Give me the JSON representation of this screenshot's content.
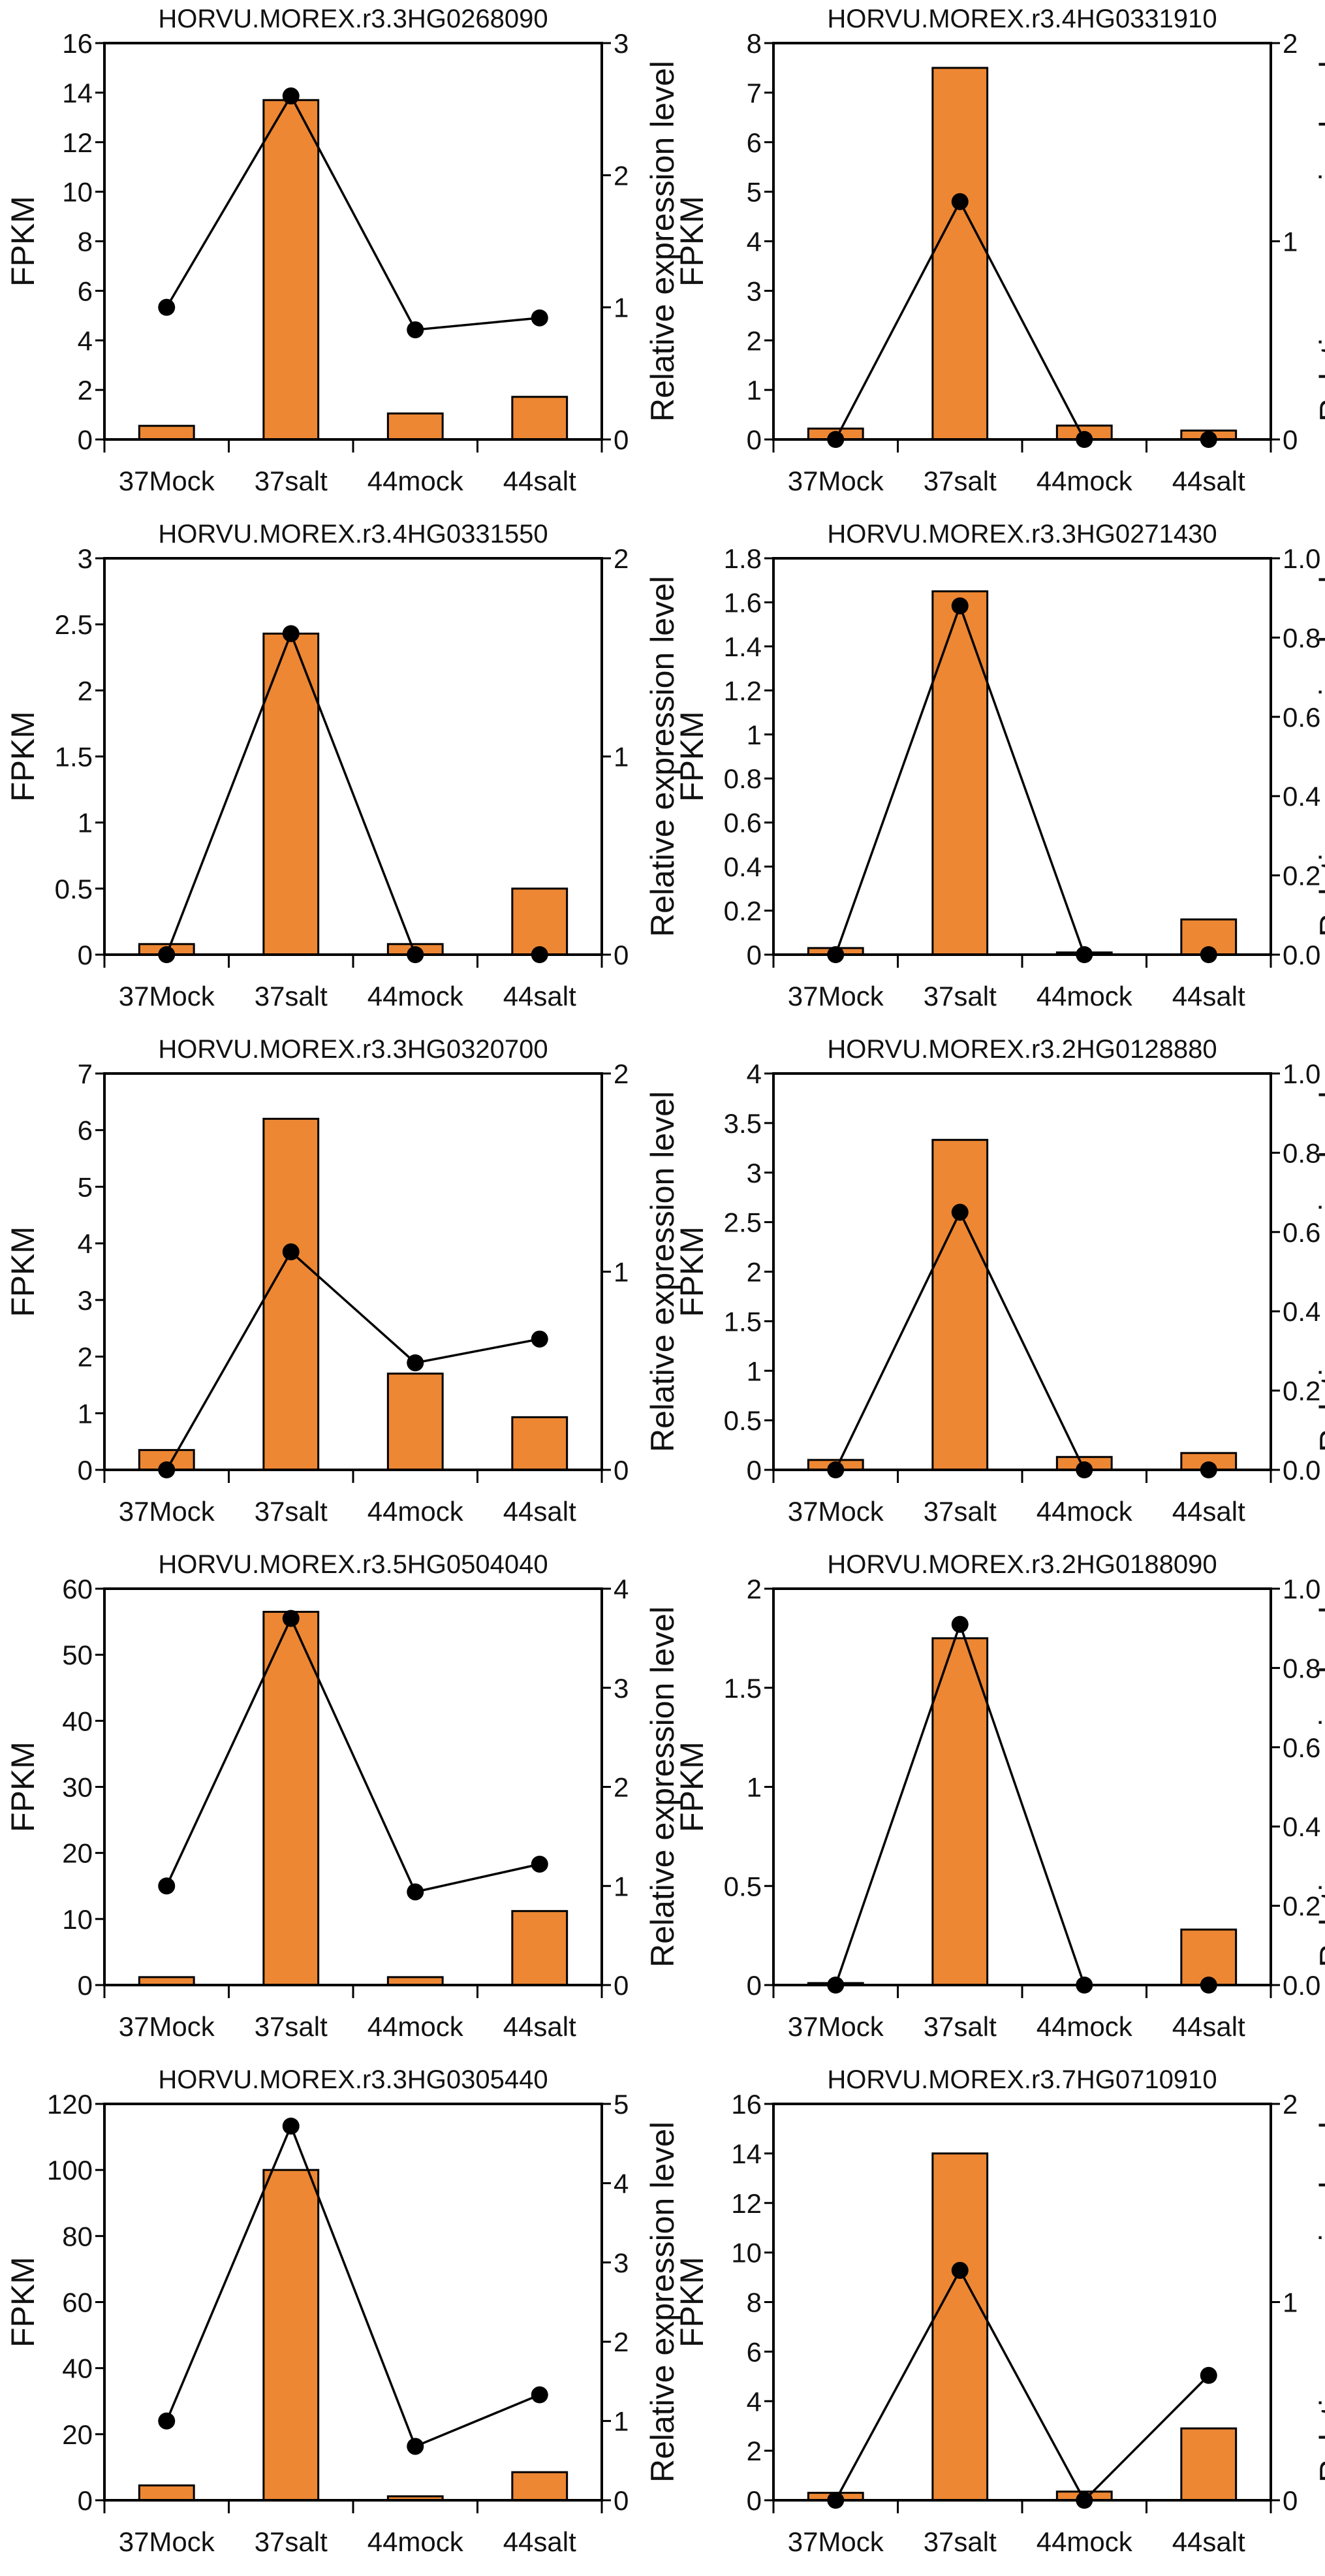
{
  "colors": {
    "bar": "#ED8733",
    "line": "#000000"
  },
  "chart_data": [
    {
      "type": "bar+line",
      "title": "HORVU.MOREX.r3.3HG0268090",
      "categories": [
        "37Mock",
        "37salt",
        "44mock",
        "44salt"
      ],
      "ylabel": "FPKM",
      "y2label": "Relative expression level",
      "ylim": [
        0,
        16
      ],
      "yticks": [
        "0",
        "2",
        "4",
        "6",
        "8",
        "10",
        "12",
        "14",
        "16"
      ],
      "y2lim": [
        0,
        3
      ],
      "y2ticks": [
        "0",
        "1",
        "2",
        "3"
      ],
      "series": [
        {
          "name": "FPKM",
          "type": "bar",
          "axis": "left",
          "values": [
            0.55,
            13.7,
            1.05,
            1.72
          ]
        },
        {
          "name": "Relative expression level",
          "type": "line",
          "axis": "right",
          "values": [
            1.0,
            2.6,
            0.83,
            0.92
          ]
        }
      ]
    },
    {
      "type": "bar+line",
      "title": "HORVU.MOREX.r3.4HG0331910",
      "categories": [
        "37Mock",
        "37salt",
        "44mock",
        "44salt"
      ],
      "ylabel": "FPKM",
      "y2label": "Relative expression level",
      "ylim": [
        0,
        8
      ],
      "yticks": [
        "0",
        "1",
        "2",
        "3",
        "4",
        "5",
        "6",
        "7",
        "8"
      ],
      "y2lim": [
        0,
        2
      ],
      "y2ticks": [
        "0",
        "1",
        "2"
      ],
      "series": [
        {
          "name": "FPKM",
          "type": "bar",
          "axis": "left",
          "values": [
            0.22,
            7.5,
            0.28,
            0.18
          ]
        },
        {
          "name": "Relative expression level",
          "type": "line",
          "axis": "right",
          "values": [
            0,
            1.2,
            0,
            0
          ]
        }
      ]
    },
    {
      "type": "bar+line",
      "title": "HORVU.MOREX.r3.4HG0331550",
      "categories": [
        "37Mock",
        "37salt",
        "44mock",
        "44salt"
      ],
      "ylabel": "FPKM",
      "y2label": "Relative expression level",
      "ylim": [
        0,
        3
      ],
      "yticks": [
        "0",
        "0.5",
        "1",
        "1.5",
        "2",
        "2.5",
        "3"
      ],
      "y2lim": [
        0,
        2
      ],
      "y2ticks": [
        "0",
        "1",
        "2"
      ],
      "series": [
        {
          "name": "FPKM",
          "type": "bar",
          "axis": "left",
          "values": [
            0.08,
            2.43,
            0.08,
            0.5
          ]
        },
        {
          "name": "Relative expression level",
          "type": "line",
          "axis": "right",
          "values": [
            0,
            1.62,
            0,
            0
          ]
        }
      ]
    },
    {
      "type": "bar+line",
      "title": "HORVU.MOREX.r3.3HG0271430",
      "categories": [
        "37Mock",
        "37salt",
        "44mock",
        "44salt"
      ],
      "ylabel": "FPKM",
      "y2label": "Relative expression level",
      "ylim": [
        0,
        1.8
      ],
      "yticks": [
        "0",
        "0.2",
        "0.4",
        "0.6",
        "0.8",
        "1",
        "1.2",
        "1.4",
        "1.6",
        "1.8"
      ],
      "y2lim": [
        0,
        1.0
      ],
      "y2ticks": [
        "0.0",
        "0.2",
        "0.4",
        "0.6",
        "0.8",
        "1.0"
      ],
      "series": [
        {
          "name": "FPKM",
          "type": "bar",
          "axis": "left",
          "values": [
            0.03,
            1.65,
            0.01,
            0.16
          ]
        },
        {
          "name": "Relative expression level",
          "type": "line",
          "axis": "right",
          "values": [
            0,
            0.88,
            0,
            0
          ]
        }
      ]
    },
    {
      "type": "bar+line",
      "title": "HORVU.MOREX.r3.3HG0320700",
      "categories": [
        "37Mock",
        "37salt",
        "44mock",
        "44salt"
      ],
      "ylabel": "FPKM",
      "y2label": "Relative expression level",
      "ylim": [
        0,
        7
      ],
      "yticks": [
        "0",
        "1",
        "2",
        "3",
        "4",
        "5",
        "6",
        "7"
      ],
      "y2lim": [
        0,
        2
      ],
      "y2ticks": [
        "0",
        "1",
        "2"
      ],
      "series": [
        {
          "name": "FPKM",
          "type": "bar",
          "axis": "left",
          "values": [
            0.35,
            6.2,
            1.7,
            0.93
          ]
        },
        {
          "name": "Relative expression level",
          "type": "line",
          "axis": "right",
          "values": [
            0,
            1.1,
            0.54,
            0.66
          ]
        }
      ]
    },
    {
      "type": "bar+line",
      "title": "HORVU.MOREX.r3.2HG0128880",
      "categories": [
        "37Mock",
        "37salt",
        "44mock",
        "44salt"
      ],
      "ylabel": "FPKM",
      "y2label": "Relative expression level",
      "ylim": [
        0,
        4
      ],
      "yticks": [
        "0",
        "0.5",
        "1",
        "1.5",
        "2",
        "2.5",
        "3",
        "3.5",
        "4"
      ],
      "y2lim": [
        0,
        1.0
      ],
      "y2ticks": [
        "0.0",
        "0.2",
        "0.4",
        "0.6",
        "0.8",
        "1.0"
      ],
      "series": [
        {
          "name": "FPKM",
          "type": "bar",
          "axis": "left",
          "values": [
            0.1,
            3.33,
            0.13,
            0.17
          ]
        },
        {
          "name": "Relative expression level",
          "type": "line",
          "axis": "right",
          "values": [
            0,
            0.65,
            0,
            0
          ]
        }
      ]
    },
    {
      "type": "bar+line",
      "title": "HORVU.MOREX.r3.5HG0504040",
      "categories": [
        "37Mock",
        "37salt",
        "44mock",
        "44salt"
      ],
      "ylabel": "FPKM",
      "y2label": "Relative expression level",
      "ylim": [
        0,
        60
      ],
      "yticks": [
        "0",
        "10",
        "20",
        "30",
        "40",
        "50",
        "60"
      ],
      "y2lim": [
        0,
        4
      ],
      "y2ticks": [
        "0",
        "1",
        "2",
        "3",
        "4"
      ],
      "series": [
        {
          "name": "FPKM",
          "type": "bar",
          "axis": "left",
          "values": [
            1.2,
            56.5,
            1.2,
            11.2
          ]
        },
        {
          "name": "Relative expression level",
          "type": "line",
          "axis": "right",
          "values": [
            1.0,
            3.7,
            0.94,
            1.22
          ]
        }
      ]
    },
    {
      "type": "bar+line",
      "title": "HORVU.MOREX.r3.2HG0188090",
      "categories": [
        "37Mock",
        "37salt",
        "44mock",
        "44salt"
      ],
      "ylabel": "FPKM",
      "y2label": "Relative expression level",
      "ylim": [
        0,
        2
      ],
      "yticks": [
        "0",
        "0.5",
        "1",
        "1.5",
        "2"
      ],
      "y2lim": [
        0,
        1.0
      ],
      "y2ticks": [
        "0.0",
        "0.2",
        "0.4",
        "0.6",
        "0.8",
        "1.0"
      ],
      "series": [
        {
          "name": "FPKM",
          "type": "bar",
          "axis": "left",
          "values": [
            0.01,
            1.75,
            0,
            0.28
          ]
        },
        {
          "name": "Relative expression level",
          "type": "line",
          "axis": "right",
          "values": [
            0,
            0.91,
            0,
            0
          ]
        }
      ]
    },
    {
      "type": "bar+line",
      "title": "HORVU.MOREX.r3.3HG0305440",
      "categories": [
        "37Mock",
        "37salt",
        "44mock",
        "44salt"
      ],
      "ylabel": "FPKM",
      "y2label": "Relative expression level",
      "ylim": [
        0,
        120
      ],
      "yticks": [
        "0",
        "20",
        "40",
        "60",
        "80",
        "100",
        "120"
      ],
      "y2lim": [
        0,
        5
      ],
      "y2ticks": [
        "0",
        "1",
        "2",
        "3",
        "4",
        "5"
      ],
      "series": [
        {
          "name": "FPKM",
          "type": "bar",
          "axis": "left",
          "values": [
            4.5,
            100,
            1.2,
            8.5
          ]
        },
        {
          "name": "Relative expression level",
          "type": "line",
          "axis": "right",
          "values": [
            1.0,
            4.72,
            0.68,
            1.33
          ]
        }
      ]
    },
    {
      "type": "bar+line",
      "title": "HORVU.MOREX.r3.7HG0710910",
      "categories": [
        "37Mock",
        "37salt",
        "44mock",
        "44salt"
      ],
      "ylabel": "FPKM",
      "y2label": "Relative expression level",
      "ylim": [
        0,
        16
      ],
      "yticks": [
        "0",
        "2",
        "4",
        "6",
        "8",
        "10",
        "12",
        "14",
        "16"
      ],
      "y2lim": [
        0,
        2
      ],
      "y2ticks": [
        "0",
        "1",
        "2"
      ],
      "series": [
        {
          "name": "FPKM",
          "type": "bar",
          "axis": "left",
          "values": [
            0.3,
            14,
            0.35,
            2.9
          ]
        },
        {
          "name": "Relative expression level",
          "type": "line",
          "axis": "right",
          "values": [
            0,
            1.16,
            0,
            0.63
          ]
        }
      ]
    }
  ]
}
